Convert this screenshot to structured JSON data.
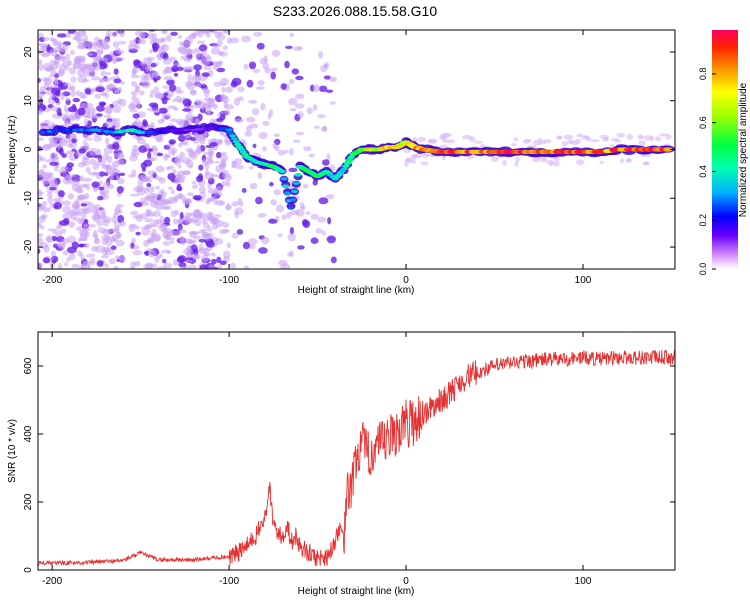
{
  "title": "S233.2026.088.15.58.G10",
  "colors": {
    "accent_line": "#e83030"
  },
  "chart_data": [
    {
      "type": "heatmap",
      "xlabel": "Height of straight line (km)",
      "ylabel": "Frequency (Hz)",
      "xlim": [
        -208,
        152
      ],
      "ylim": [
        -24.5,
        24.5
      ],
      "xticks": [
        -200,
        -100,
        0,
        100
      ],
      "yticks": [
        -20,
        -10,
        0,
        10,
        20
      ],
      "colorbar": {
        "label": "Normalized spectral amplitude",
        "range": [
          0,
          0.98
        ],
        "ticks": [
          0,
          0.2,
          0.4,
          0.6,
          0.8
        ]
      },
      "ridge": [
        {
          "x": -205,
          "y": 3.5,
          "v": 0.3
        },
        {
          "x": -195,
          "y": 4.0,
          "v": 0.25
        },
        {
          "x": -185,
          "y": 4.0,
          "v": 0.28
        },
        {
          "x": -175,
          "y": 4.0,
          "v": 0.3
        },
        {
          "x": -165,
          "y": 3.5,
          "v": 0.32
        },
        {
          "x": -155,
          "y": 4.0,
          "v": 0.45
        },
        {
          "x": -150,
          "y": 3.5,
          "v": 0.35
        },
        {
          "x": -140,
          "y": 3.5,
          "v": 0.2
        },
        {
          "x": -130,
          "y": 4.0,
          "v": 0.15
        },
        {
          "x": -120,
          "y": 4.0,
          "v": 0.12
        },
        {
          "x": -110,
          "y": 4.5,
          "v": 0.15
        },
        {
          "x": -100,
          "y": 4.0,
          "v": 0.3
        },
        {
          "x": -95,
          "y": 1.0,
          "v": 0.4
        },
        {
          "x": -90,
          "y": -1.5,
          "v": 0.45
        },
        {
          "x": -85,
          "y": -2.5,
          "v": 0.4
        },
        {
          "x": -80,
          "y": -3.0,
          "v": 0.45
        },
        {
          "x": -75,
          "y": -3.5,
          "v": 0.5
        },
        {
          "x": -70,
          "y": -4.5,
          "v": 0.4
        },
        {
          "x": -65,
          "y": -12.0,
          "v": 0.3
        },
        {
          "x": -60,
          "y": -3.5,
          "v": 0.45
        },
        {
          "x": -55,
          "y": -4.5,
          "v": 0.5
        },
        {
          "x": -50,
          "y": -5.5,
          "v": 0.55
        },
        {
          "x": -45,
          "y": -4.5,
          "v": 0.45
        },
        {
          "x": -40,
          "y": -6.0,
          "v": 0.35
        },
        {
          "x": -35,
          "y": -4.0,
          "v": 0.4
        },
        {
          "x": -30,
          "y": -1.0,
          "v": 0.5
        },
        {
          "x": -25,
          "y": 0.0,
          "v": 0.6
        },
        {
          "x": -20,
          "y": 0.0,
          "v": 0.75
        },
        {
          "x": -15,
          "y": 0.0,
          "v": 0.7
        },
        {
          "x": -10,
          "y": 0.5,
          "v": 0.8
        },
        {
          "x": -5,
          "y": 0.5,
          "v": 0.75
        },
        {
          "x": 0,
          "y": 1.5,
          "v": 0.7
        },
        {
          "x": 5,
          "y": 0.5,
          "v": 0.8
        },
        {
          "x": 10,
          "y": 0.0,
          "v": 0.85
        },
        {
          "x": 20,
          "y": -0.5,
          "v": 0.9
        },
        {
          "x": 30,
          "y": -0.5,
          "v": 0.9
        },
        {
          "x": 40,
          "y": -0.5,
          "v": 0.88
        },
        {
          "x": 50,
          "y": -0.5,
          "v": 0.9
        },
        {
          "x": 60,
          "y": -0.5,
          "v": 0.92
        },
        {
          "x": 70,
          "y": -0.5,
          "v": 0.9
        },
        {
          "x": 80,
          "y": -0.5,
          "v": 0.88
        },
        {
          "x": 90,
          "y": -0.5,
          "v": 0.9
        },
        {
          "x": 100,
          "y": -0.5,
          "v": 0.9
        },
        {
          "x": 110,
          "y": -0.5,
          "v": 0.88
        },
        {
          "x": 120,
          "y": 0.0,
          "v": 0.9
        },
        {
          "x": 130,
          "y": 0.0,
          "v": 0.92
        },
        {
          "x": 140,
          "y": 0.0,
          "v": 0.95
        },
        {
          "x": 150,
          "y": 0.0,
          "v": 0.93
        }
      ]
    },
    {
      "type": "line",
      "xlabel": "Height of straight line (km)",
      "ylabel": "SNR (10 * v/v)",
      "xlim": [
        -208,
        152
      ],
      "ylim": [
        0,
        700
      ],
      "xticks": [
        -200,
        -100,
        0,
        100
      ],
      "yticks": [
        0,
        200,
        400,
        600
      ],
      "series": [
        {
          "x": [
            -208,
            -180,
            -160,
            -150,
            -140,
            -120,
            -110,
            -100,
            -95,
            -90,
            -85,
            -80,
            -77,
            -75,
            -72,
            -70,
            -67,
            -65,
            -62,
            -60,
            -55,
            -50,
            -45,
            -42,
            -40,
            -38,
            -35,
            -33,
            -30,
            -28,
            -25,
            -22,
            -20,
            -15,
            -10,
            -5,
            0,
            5,
            10,
            15,
            20,
            25,
            30,
            35,
            40,
            45,
            50,
            60,
            70,
            80,
            90,
            100,
            110,
            120,
            130,
            140,
            152
          ],
          "y": [
            20,
            22,
            28,
            50,
            30,
            30,
            35,
            40,
            50,
            70,
            100,
            150,
            240,
            130,
            110,
            90,
            140,
            80,
            100,
            70,
            50,
            35,
            40,
            60,
            90,
            120,
            80,
            220,
            260,
            330,
            380,
            330,
            350,
            360,
            380,
            410,
            430,
            440,
            460,
            480,
            500,
            520,
            550,
            570,
            580,
            590,
            600,
            610,
            615,
            620,
            620,
            625,
            620,
            625,
            625,
            625,
            625
          ]
        }
      ]
    }
  ]
}
